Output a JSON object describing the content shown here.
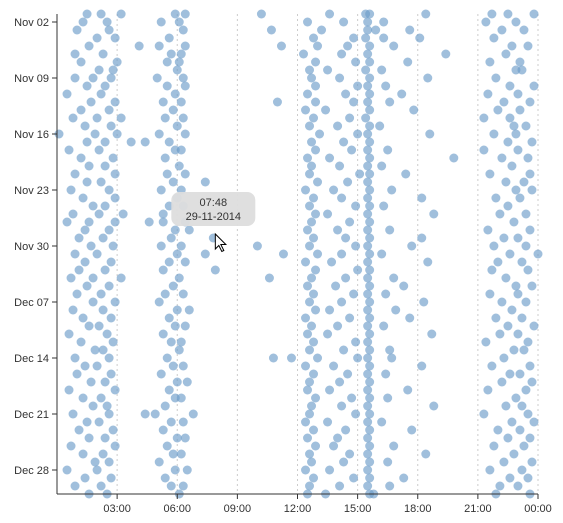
{
  "chart_data": {
    "type": "scatter",
    "xlim": [
      0,
      24
    ],
    "xticks": [
      {
        "value": 3,
        "label": "03:00"
      },
      {
        "value": 6,
        "label": "06:00"
      },
      {
        "value": 9,
        "label": "09:00"
      },
      {
        "value": 12,
        "label": "12:00"
      },
      {
        "value": 15,
        "label": "15:00"
      },
      {
        "value": 18,
        "label": "18:00"
      },
      {
        "value": 21,
        "label": "21:00"
      },
      {
        "value": 24,
        "label": "00:00"
      }
    ],
    "ylim": [
      "2014-11-01",
      "2014-12-31"
    ],
    "yticks": [
      {
        "value": "2014-11-02",
        "label": "Nov 02"
      },
      {
        "value": "2014-11-09",
        "label": "Nov 09"
      },
      {
        "value": "2014-11-16",
        "label": "Nov 16"
      },
      {
        "value": "2014-11-23",
        "label": "Nov 23"
      },
      {
        "value": "2014-11-30",
        "label": "Nov 30"
      },
      {
        "value": "2014-12-07",
        "label": "Dec 07"
      },
      {
        "value": "2014-12-14",
        "label": "Dec 14"
      },
      {
        "value": "2014-12-21",
        "label": "Dec 21"
      },
      {
        "value": "2014-12-28",
        "label": "Dec 28"
      }
    ],
    "grid": true,
    "color": "#6d9cc9",
    "tooltip": {
      "time": "07:48",
      "date": "29-11-2014",
      "x": 7.8,
      "y": "2014-11-29"
    },
    "rows": [
      {
        "y": "2014-11-01",
        "x": [
          1.5,
          2.2,
          3.2,
          5.9,
          6.4,
          10.2,
          13.6,
          15.4,
          15.6,
          18.4,
          21.7,
          22.5,
          23.8
        ]
      },
      {
        "y": "2014-11-02",
        "x": [
          1.3,
          2.5,
          5.2,
          6.1,
          12.5,
          14.3,
          15.5,
          16.3,
          21.4,
          22.9
        ]
      },
      {
        "y": "2014-11-03",
        "x": [
          1.0,
          2.6,
          6.3,
          10.7,
          13.2,
          15.5,
          15.9,
          17.6,
          22.2,
          23.3
        ]
      },
      {
        "y": "2014-11-04",
        "x": [
          2.0,
          2.9,
          5.6,
          12.8,
          14.8,
          15.4,
          16.3,
          18.1,
          21.8
        ]
      },
      {
        "y": "2014-11-05",
        "x": [
          1.6,
          4.1,
          5.1,
          6.4,
          11.2,
          13.0,
          14.5,
          15.6,
          16.8,
          22.7,
          23.5
        ]
      },
      {
        "y": "2014-11-06",
        "x": [
          0.9,
          2.3,
          5.7,
          6.2,
          12.3,
          14.2,
          15.5,
          19.4,
          22.4
        ]
      },
      {
        "y": "2014-11-07",
        "x": [
          1.2,
          3.0,
          5.5,
          6.1,
          12.9,
          14.9,
          15.6,
          17.5,
          21.6,
          23.1
        ]
      },
      {
        "y": "2014-11-08",
        "x": [
          2.1,
          2.8,
          6.0,
          12.6,
          13.5,
          15.4,
          16.2,
          22.9,
          23.2
        ]
      },
      {
        "y": "2014-11-09",
        "x": [
          0.9,
          1.8,
          2.7,
          5.0,
          6.3,
          12.7,
          14.1,
          15.6,
          18.5,
          21.9
        ]
      },
      {
        "y": "2014-11-10",
        "x": [
          1.5,
          2.4,
          5.5,
          6.4,
          12.9,
          15.0,
          15.5,
          16.4,
          22.6,
          23.8
        ]
      },
      {
        "y": "2014-11-11",
        "x": [
          0.5,
          2.2,
          5.9,
          12.5,
          14.4,
          15.6,
          17.2,
          21.5,
          23.0
        ]
      },
      {
        "y": "2014-11-12",
        "x": [
          1.7,
          2.9,
          5.3,
          6.2,
          11.0,
          12.9,
          14.8,
          15.5,
          16.6,
          22.3,
          23.6
        ]
      },
      {
        "y": "2014-11-13",
        "x": [
          1.2,
          2.6,
          5.8,
          12.4,
          13.4,
          15.6,
          17.8,
          22.0,
          23.1
        ]
      },
      {
        "y": "2014-11-14",
        "x": [
          0.8,
          2.0,
          3.2,
          5.4,
          6.3,
          12.8,
          14.6,
          15.4,
          21.3,
          22.6
        ]
      },
      {
        "y": "2014-11-15",
        "x": [
          1.4,
          2.7,
          6.0,
          12.6,
          14.0,
          15.6,
          16.1,
          22.8,
          23.4
        ]
      },
      {
        "y": "2014-11-16",
        "x": [
          0.1,
          1.9,
          3.0,
          5.1,
          6.4,
          13.1,
          15.0,
          15.5,
          18.6,
          21.8,
          22.9
        ]
      },
      {
        "y": "2014-11-17",
        "x": [
          1.5,
          2.4,
          3.7,
          4.4,
          5.6,
          12.7,
          14.3,
          15.6,
          22.5,
          23.7
        ]
      },
      {
        "y": "2014-11-18",
        "x": [
          0.6,
          2.1,
          5.9,
          6.2,
          12.9,
          14.7,
          15.5,
          16.5,
          21.3,
          23.0
        ]
      },
      {
        "y": "2014-11-19",
        "x": [
          1.2,
          2.8,
          5.4,
          12.5,
          13.6,
          15.6,
          19.8,
          22.2,
          23.5
        ]
      },
      {
        "y": "2014-11-20",
        "x": [
          1.6,
          2.4,
          6.1,
          12.7,
          14.1,
          15.5,
          16.2,
          22.7
        ]
      },
      {
        "y": "2014-11-21",
        "x": [
          0.9,
          2.9,
          5.5,
          6.4,
          12.6,
          15.1,
          15.6,
          17.4,
          21.6,
          23.6
        ]
      },
      {
        "y": "2014-11-22",
        "x": [
          1.5,
          2.2,
          5.8,
          7.4,
          13.0,
          14.5,
          15.5,
          22.4,
          23.3
        ]
      },
      {
        "y": "2014-11-23",
        "x": [
          0.7,
          2.6,
          5.2,
          6.2,
          12.4,
          13.8,
          15.6,
          16.7,
          22.9,
          23.7
        ]
      },
      {
        "y": "2014-11-24",
        "x": [
          1.3,
          2.9,
          6.0,
          12.8,
          14.2,
          15.5,
          18.2,
          21.9,
          23.1
        ]
      },
      {
        "y": "2014-11-25",
        "x": [
          1.8,
          2.4,
          5.6,
          6.3,
          12.6,
          14.9,
          15.6,
          16.3,
          22.5
        ]
      },
      {
        "y": "2014-11-26",
        "x": [
          0.8,
          2.1,
          3.3,
          5.3,
          12.9,
          13.5,
          15.5,
          18.8,
          22.1,
          23.4
        ]
      },
      {
        "y": "2014-11-27",
        "x": [
          0.5,
          1.6,
          2.9,
          4.6,
          5.3,
          6.4,
          12.7,
          14.6,
          15.6,
          22.8
        ]
      },
      {
        "y": "2014-11-28",
        "x": [
          1.4,
          2.6,
          5.9,
          6.6,
          12.5,
          14.0,
          15.5,
          16.6,
          21.5,
          23.6
        ]
      },
      {
        "y": "2014-11-29",
        "x": [
          1.1,
          2.3,
          5.7,
          7.8,
          12.8,
          14.4,
          15.6,
          18.2,
          22.3,
          23.0
        ]
      },
      {
        "y": "2014-11-30",
        "x": [
          1.7,
          2.8,
          5.2,
          6.2,
          10.0,
          12.6,
          14.9,
          15.5,
          17.7,
          21.8,
          23.4
        ]
      },
      {
        "y": "2014-12-01",
        "x": [
          0.9,
          2.0,
          6.0,
          7.4,
          11.3,
          13.0,
          14.2,
          15.6,
          16.2,
          22.6,
          24.0
        ]
      },
      {
        "y": "2014-12-02",
        "x": [
          1.4,
          2.7,
          5.6,
          6.4,
          12.4,
          13.7,
          15.5,
          18.5,
          22.0,
          23.2
        ]
      },
      {
        "y": "2014-12-03",
        "x": [
          1.1,
          2.4,
          5.3,
          7.9,
          12.9,
          15.0,
          15.6,
          21.7,
          23.5
        ]
      },
      {
        "y": "2014-12-04",
        "x": [
          0.7,
          1.8,
          3.2,
          6.1,
          10.6,
          12.7,
          14.4,
          15.5,
          16.8,
          22.4
        ]
      },
      {
        "y": "2014-12-05",
        "x": [
          1.5,
          2.6,
          5.8,
          12.5,
          13.9,
          15.6,
          17.3,
          22.9,
          23.7
        ]
      },
      {
        "y": "2014-12-06",
        "x": [
          1.0,
          2.2,
          5.4,
          6.3,
          12.8,
          14.8,
          15.5,
          16.4,
          21.6,
          23.0
        ]
      },
      {
        "y": "2014-12-07",
        "x": [
          1.8,
          2.9,
          5.1,
          12.6,
          14.2,
          15.6,
          18.3,
          22.2,
          23.4
        ]
      },
      {
        "y": "2014-12-08",
        "x": [
          0.8,
          2.3,
          6.0,
          6.6,
          12.9,
          13.6,
          15.5,
          16.9,
          22.7
        ]
      },
      {
        "y": "2014-12-09",
        "x": [
          1.3,
          2.7,
          5.6,
          12.4,
          14.6,
          15.6,
          17.6,
          21.9,
          23.2
        ]
      },
      {
        "y": "2014-12-10",
        "x": [
          1.6,
          2.1,
          5.9,
          6.4,
          12.7,
          14.0,
          15.5,
          16.3,
          22.5,
          23.8
        ]
      },
      {
        "y": "2014-12-11",
        "x": [
          0.6,
          2.5,
          5.3,
          12.5,
          13.5,
          15.6,
          18.7,
          22.1,
          23.0
        ]
      },
      {
        "y": "2014-12-12",
        "x": [
          1.2,
          2.8,
          5.7,
          6.2,
          12.8,
          14.9,
          15.5,
          21.4,
          23.5
        ]
      },
      {
        "y": "2014-12-13",
        "x": [
          1.9,
          2.3,
          6.1,
          12.6,
          14.3,
          15.6,
          16.6,
          22.8,
          23.3
        ]
      },
      {
        "y": "2014-12-14",
        "x": [
          0.9,
          2.6,
          5.5,
          10.8,
          11.7,
          13.0,
          15.0,
          15.5,
          16.7,
          22.3
        ]
      },
      {
        "y": "2014-12-15",
        "x": [
          1.4,
          2.0,
          5.8,
          6.3,
          12.4,
          13.8,
          15.6,
          18.2,
          21.7,
          23.6
        ]
      },
      {
        "y": "2014-12-16",
        "x": [
          1.0,
          2.7,
          5.2,
          12.8,
          14.5,
          15.5,
          16.4,
          22.6,
          23.1
        ]
      },
      {
        "y": "2014-12-17",
        "x": [
          1.7,
          2.4,
          6.0,
          6.5,
          12.6,
          14.1,
          15.6,
          22.2,
          23.7
        ]
      },
      {
        "y": "2014-12-18",
        "x": [
          0.6,
          2.9,
          5.6,
          12.5,
          13.6,
          15.5,
          17.5,
          21.5,
          23.4
        ]
      },
      {
        "y": "2014-12-19",
        "x": [
          1.3,
          2.2,
          5.9,
          6.2,
          12.9,
          14.7,
          15.6,
          16.5,
          22.9
        ]
      },
      {
        "y": "2014-12-20",
        "x": [
          1.8,
          2.5,
          5.4,
          12.7,
          14.2,
          15.5,
          18.8,
          22.4,
          23.2
        ]
      },
      {
        "y": "2014-12-21",
        "x": [
          0.8,
          2.6,
          4.4,
          4.9,
          6.8,
          12.6,
          14.9,
          15.6,
          21.3,
          23.5
        ]
      },
      {
        "y": "2014-12-22",
        "x": [
          1.5,
          2.1,
          5.7,
          6.3,
          12.4,
          13.5,
          15.5,
          16.2,
          22.7,
          23.8
        ]
      },
      {
        "y": "2014-12-23",
        "x": [
          1.1,
          2.8,
          5.3,
          12.8,
          14.4,
          15.6,
          17.7,
          22.0,
          23.1
        ]
      },
      {
        "y": "2014-12-24",
        "x": [
          1.6,
          2.4,
          6.0,
          6.4,
          12.5,
          14.0,
          15.5,
          22.5,
          23.6
        ]
      },
      {
        "y": "2014-12-25",
        "x": [
          0.7,
          2.9,
          5.5,
          12.9,
          13.8,
          15.6,
          16.8,
          21.8,
          23.3
        ]
      },
      {
        "y": "2014-12-26",
        "x": [
          1.3,
          2.3,
          5.8,
          6.2,
          12.6,
          14.6,
          15.5,
          18.4,
          22.8
        ]
      },
      {
        "y": "2014-12-27",
        "x": [
          1.9,
          2.6,
          5.1,
          12.7,
          14.3,
          15.6,
          16.5,
          22.3,
          23.7
        ]
      },
      {
        "y": "2014-12-28",
        "x": [
          0.5,
          2.0,
          5.9,
          6.5,
          12.4,
          13.6,
          15.5,
          21.6,
          23.2
        ]
      },
      {
        "y": "2014-12-29",
        "x": [
          1.4,
          2.7,
          5.4,
          12.8,
          14.8,
          15.6,
          17.3,
          22.6,
          23.5
        ]
      },
      {
        "y": "2014-12-30",
        "x": [
          0.9,
          2.2,
          5.7,
          6.3,
          12.6,
          14.1,
          15.5,
          16.6,
          22.1,
          23.0
        ]
      },
      {
        "y": "2014-12-31",
        "x": [
          1.6,
          2.5,
          6.1,
          12.5,
          13.4,
          15.6,
          15.8,
          21.9,
          23.6
        ]
      }
    ]
  }
}
